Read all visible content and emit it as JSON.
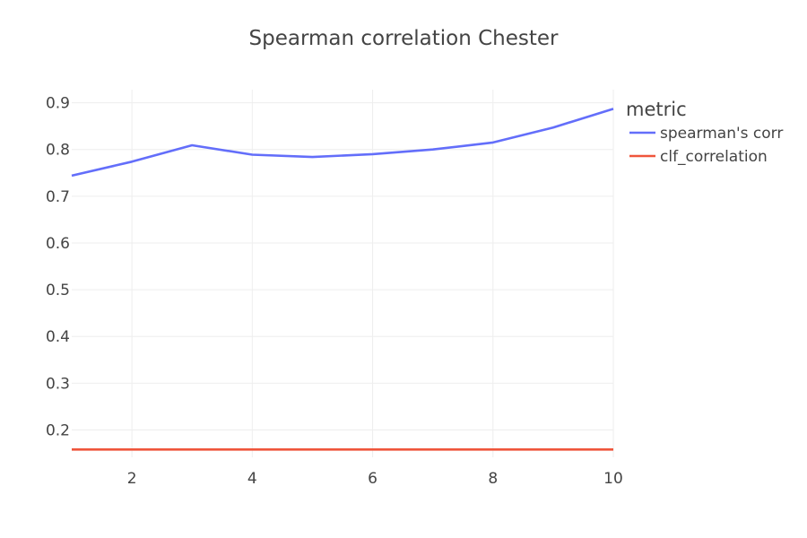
{
  "chart_data": {
    "type": "line",
    "title": "Spearman correlation Chester",
    "xlabel": "",
    "ylabel": "",
    "x": [
      1,
      2,
      3,
      4,
      5,
      6,
      7,
      8,
      9,
      10
    ],
    "series": [
      {
        "name": "spearman's corr",
        "color": "#636efa",
        "values": [
          0.744,
          0.774,
          0.809,
          0.789,
          0.784,
          0.79,
          0.8,
          0.815,
          0.847,
          0.887
        ]
      },
      {
        "name": "clf_correlation",
        "color": "#ef553b",
        "values": [
          0.158,
          0.158,
          0.158,
          0.158,
          0.158,
          0.158,
          0.158,
          0.158,
          0.158,
          0.158
        ]
      }
    ],
    "xlim": [
      1,
      10
    ],
    "ylim": [
      0.1414,
      0.928
    ],
    "xticks": [
      2,
      4,
      6,
      8,
      10
    ],
    "yticks": [
      0.2,
      0.3,
      0.4,
      0.5,
      0.6,
      0.7,
      0.8,
      0.9
    ],
    "grid": true,
    "legend": {
      "title": "metric",
      "placement": "right"
    }
  }
}
